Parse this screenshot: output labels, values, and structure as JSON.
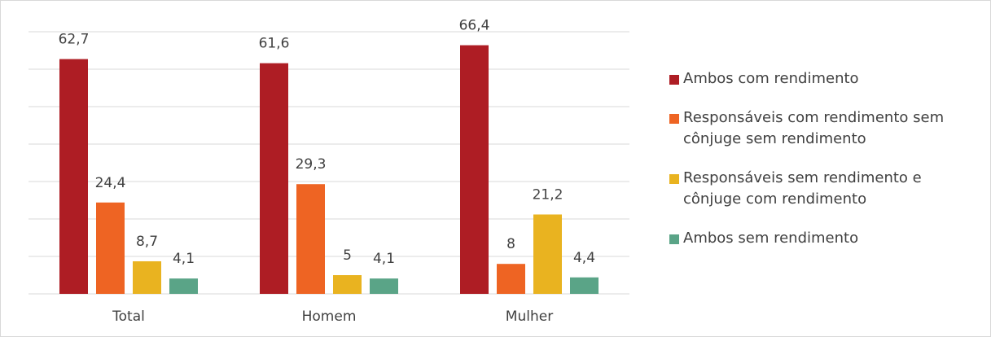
{
  "chart_data": {
    "type": "bar",
    "categories": [
      "Total",
      "Homem",
      "Mulher"
    ],
    "series": [
      {
        "name": "Ambos com rendimento",
        "color": "#ae1d24",
        "values": [
          62.7,
          61.6,
          66.4
        ],
        "value_labels": [
          "62,7",
          "61,6",
          "66,4"
        ]
      },
      {
        "name": "Responsáveis com rendimento sem cônjuge sem rendimento",
        "color": "#ee6423",
        "values": [
          24.4,
          29.3,
          8
        ],
        "value_labels": [
          "24,4",
          "29,3",
          "8"
        ]
      },
      {
        "name": "Responsáveis sem rendimento e cônjuge com rendimento",
        "color": "#e9b320",
        "values": [
          8.7,
          5,
          21.2
        ],
        "value_labels": [
          "8,7",
          "5",
          "21,2"
        ]
      },
      {
        "name": "Ambos sem rendimento",
        "color": "#5aa487",
        "values": [
          4.1,
          4.1,
          4.4
        ],
        "value_labels": [
          "4,1",
          "4,1",
          "4,4"
        ]
      }
    ],
    "ylim": [
      0,
      70
    ],
    "yticks": [
      0,
      10,
      20,
      30,
      40,
      50,
      60,
      70
    ],
    "grid": true,
    "legend": "right"
  }
}
